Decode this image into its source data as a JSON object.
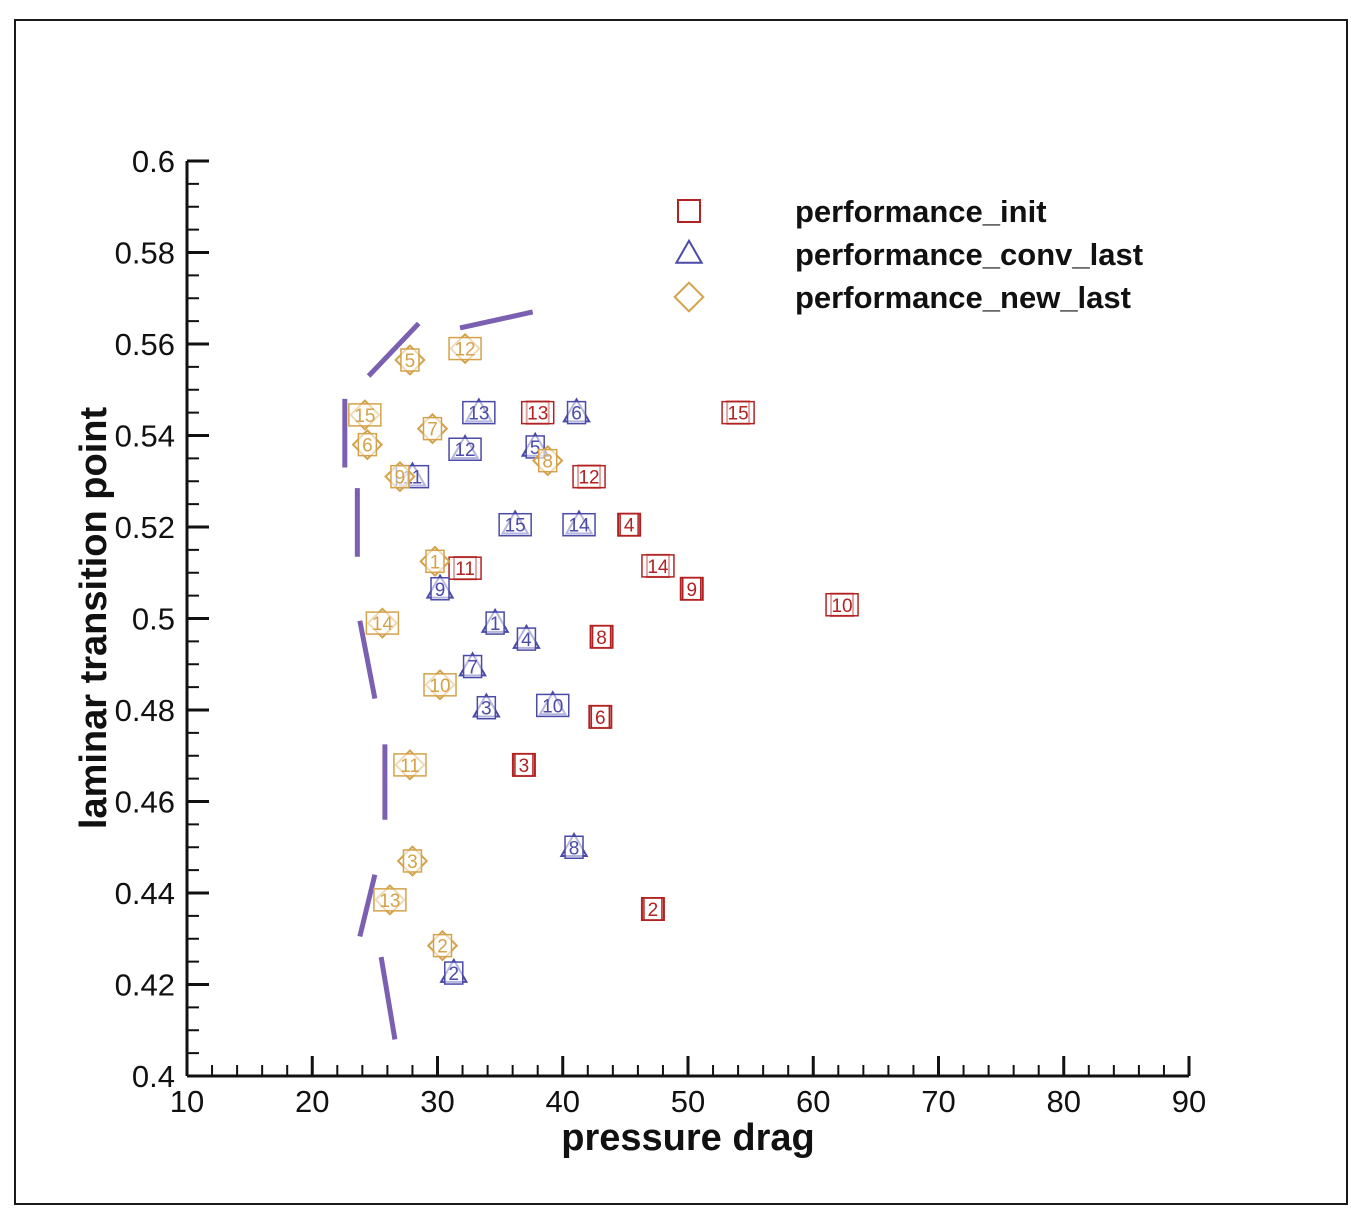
{
  "chart_data": {
    "type": "scatter",
    "xlabel": "pressure drag",
    "ylabel": "laminar transition point",
    "xlim": [
      10,
      90
    ],
    "ylim": [
      0.4,
      0.6
    ],
    "xticks": [
      "10",
      "20",
      "30",
      "40",
      "50",
      "60",
      "70",
      "80",
      "90"
    ],
    "yticks": [
      "0.4",
      "0.42",
      "0.44",
      "0.46",
      "0.48",
      "0.5",
      "0.52",
      "0.54",
      "0.56",
      "0.58",
      "0.6"
    ],
    "legend_position": "top-right",
    "series": [
      {
        "name": "performance_init",
        "marker": "square",
        "color": "#b22222",
        "points": [
          {
            "label": "2",
            "x": 47.2,
            "y": 0.4365
          },
          {
            "label": "3",
            "x": 36.9,
            "y": 0.468
          },
          {
            "label": "4",
            "x": 45.3,
            "y": 0.5205
          },
          {
            "label": "6",
            "x": 43.0,
            "y": 0.4785
          },
          {
            "label": "8",
            "x": 43.1,
            "y": 0.496
          },
          {
            "label": "9",
            "x": 50.3,
            "y": 0.5065
          },
          {
            "label": "10",
            "x": 62.3,
            "y": 0.503
          },
          {
            "label": "11",
            "x": 32.2,
            "y": 0.511
          },
          {
            "label": "12",
            "x": 42.1,
            "y": 0.531
          },
          {
            "label": "13",
            "x": 38.0,
            "y": 0.545
          },
          {
            "label": "14",
            "x": 47.6,
            "y": 0.5115
          },
          {
            "label": "15",
            "x": 54.0,
            "y": 0.545
          }
        ]
      },
      {
        "name": "performance_conv_last",
        "marker": "triangle",
        "color": "#4a4aa8",
        "points": [
          {
            "label": "1",
            "x": 34.6,
            "y": 0.499
          },
          {
            "label": "2",
            "x": 31.3,
            "y": 0.4225
          },
          {
            "label": "3",
            "x": 33.9,
            "y": 0.4805
          },
          {
            "label": "4",
            "x": 37.1,
            "y": 0.4955
          },
          {
            "label": "5",
            "x": 37.8,
            "y": 0.5375
          },
          {
            "label": "6",
            "x": 41.1,
            "y": 0.545
          },
          {
            "label": "7",
            "x": 32.8,
            "y": 0.4895
          },
          {
            "label": "8",
            "x": 40.9,
            "y": 0.45
          },
          {
            "label": "9",
            "x": 30.2,
            "y": 0.5065
          },
          {
            "label": "10",
            "x": 39.2,
            "y": 0.481
          },
          {
            "label": "11",
            "x": 28.0,
            "y": 0.531
          },
          {
            "label": "12",
            "x": 32.2,
            "y": 0.537
          },
          {
            "label": "13",
            "x": 33.3,
            "y": 0.545
          },
          {
            "label": "14",
            "x": 41.3,
            "y": 0.5205
          },
          {
            "label": "15",
            "x": 36.2,
            "y": 0.5205
          }
        ]
      },
      {
        "name": "performance_new_last",
        "marker": "diamond",
        "color": "#d4a24a",
        "points": [
          {
            "label": "1",
            "x": 29.8,
            "y": 0.5125
          },
          {
            "label": "2",
            "x": 30.4,
            "y": 0.4285
          },
          {
            "label": "3",
            "x": 28.0,
            "y": 0.447
          },
          {
            "label": "5",
            "x": 27.8,
            "y": 0.5565
          },
          {
            "label": "6",
            "x": 24.4,
            "y": 0.538
          },
          {
            "label": "7",
            "x": 29.6,
            "y": 0.5415
          },
          {
            "label": "8",
            "x": 38.8,
            "y": 0.5345
          },
          {
            "label": "9",
            "x": 27.0,
            "y": 0.531
          },
          {
            "label": "10",
            "x": 30.2,
            "y": 0.4855
          },
          {
            "label": "11",
            "x": 27.8,
            "y": 0.468
          },
          {
            "label": "12",
            "x": 32.2,
            "y": 0.559
          },
          {
            "label": "13",
            "x": 26.2,
            "y": 0.4385
          },
          {
            "label": "14",
            "x": 25.6,
            "y": 0.499
          },
          {
            "label": "15",
            "x": 24.2,
            "y": 0.5445
          }
        ]
      }
    ],
    "boundary": {
      "color": "#7b5fb0",
      "style": "dashed",
      "segments": [
        [
          [
            26.6,
            0.408
          ],
          [
            25.5,
            0.426
          ]
        ],
        [
          [
            23.8,
            0.4305
          ],
          [
            25.0,
            0.444
          ]
        ],
        [
          [
            25.8,
            0.456
          ],
          [
            25.8,
            0.4725
          ]
        ],
        [
          [
            25.0,
            0.4825
          ],
          [
            23.8,
            0.4995
          ]
        ],
        [
          [
            23.6,
            0.5135
          ],
          [
            23.6,
            0.5285
          ]
        ],
        [
          [
            22.6,
            0.533
          ],
          [
            22.6,
            0.548
          ]
        ],
        [
          [
            24.5,
            0.553
          ],
          [
            28.5,
            0.5645
          ]
        ],
        [
          [
            31.8,
            0.5635
          ],
          [
            37.6,
            0.567
          ]
        ]
      ]
    }
  }
}
